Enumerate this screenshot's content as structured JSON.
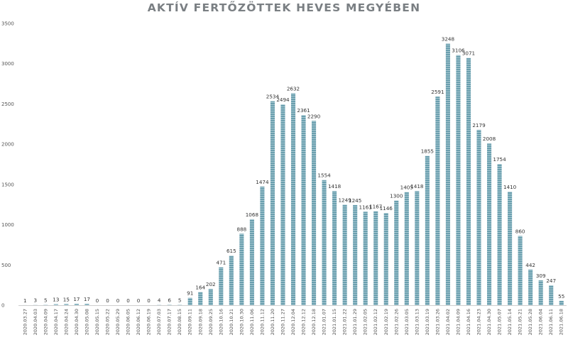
{
  "chart_data": {
    "type": "bar",
    "title": "AKTÍV FERTŐZÖTTEK HEVES MEGYÉBEN",
    "xlabel": "",
    "ylabel": "",
    "ylim": [
      0,
      3500
    ],
    "yticks": [
      0,
      500,
      1000,
      1500,
      2000,
      2500,
      3000,
      3500
    ],
    "grid": false,
    "legend": "none",
    "bar_color": "#6a9fae",
    "bar_stripe_color": "#a9c9d3",
    "categories": [
      "2020.03.27",
      "2020.04.03",
      "2020.04.09",
      "2020.04.17",
      "2020.04.24",
      "2020.04.30",
      "2020.05.08",
      "2020.05.15",
      "2020.05.22",
      "2020.05.29",
      "2020.06.05",
      "2020.06.12",
      "2020.06.19",
      "2020.07.03",
      "2020.07.17",
      "2020.08.15",
      "2020.09.11",
      "2020.09.18",
      "2020.09.25",
      "2020.10.16",
      "2020.10.21",
      "2020.10.30",
      "2020.11.06",
      "2020.11.12",
      "2020.11.20",
      "2020.11.27",
      "2020.12.04",
      "2020.12.12",
      "2020.12.18",
      "2021.01.07",
      "2021.01.15",
      "2021.01.22",
      "2021.01.29",
      "2021.02.05",
      "2021.02.12",
      "2021.02.19",
      "2021.02.26",
      "2021.03.05",
      "2021.03.13",
      "2021.03.19",
      "2021.03.26",
      "2021.04.02",
      "2021.04.09",
      "2021.04.16",
      "2021.04.23",
      "2021.04.30",
      "2021.05.07",
      "2021.05.14",
      "2021.05.21",
      "2021.05.28",
      "2021.06.04",
      "2021.06.11",
      "2021.06.18"
    ],
    "values": [
      1,
      3,
      5,
      13,
      15,
      17,
      17,
      0,
      0,
      0,
      0,
      0,
      0,
      4,
      6,
      5,
      91,
      164,
      202,
      471,
      615,
      888,
      1068,
      1474,
      2534,
      2494,
      2632,
      2361,
      2290,
      1554,
      1418,
      1249,
      1245,
      1161,
      1167,
      1146,
      1300,
      1405,
      1418,
      1855,
      2591,
      3248,
      3106,
      3071,
      2179,
      2008,
      1754,
      1410,
      860,
      442,
      309,
      247,
      55
    ]
  }
}
